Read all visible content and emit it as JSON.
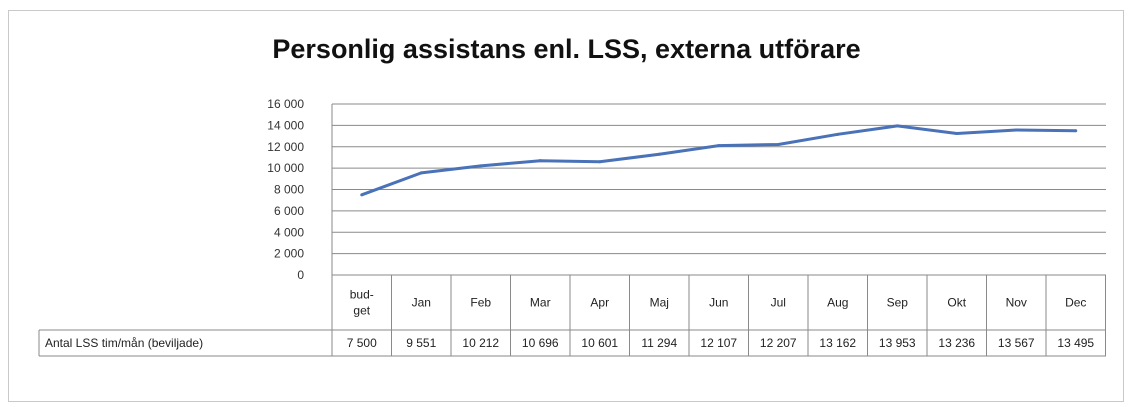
{
  "chart_data": {
    "type": "line",
    "title": "Personlig assistans enl. LSS, externa utförare",
    "categories": [
      "bud-\nget",
      "Jan",
      "Feb",
      "Mar",
      "Apr",
      "Maj",
      "Jun",
      "Jul",
      "Aug",
      "Sep",
      "Okt",
      "Nov",
      "Dec"
    ],
    "series": [
      {
        "name": "Antal LSS tim/mån (beviljade)",
        "values": [
          7500,
          9551,
          10212,
          10696,
          10601,
          11294,
          12107,
          12207,
          13162,
          13953,
          13236,
          13567,
          13495
        ],
        "value_labels": [
          "7 500",
          "9 551",
          "10 212",
          "10 696",
          "10 601",
          "11 294",
          "12 107",
          "12 207",
          "13 162",
          "13 953",
          "13 236",
          "13 567",
          "13 495"
        ],
        "color": "#4a72b8"
      }
    ],
    "ylim": [
      0,
      16000
    ],
    "yticks": [
      0,
      2000,
      4000,
      6000,
      8000,
      10000,
      12000,
      14000,
      16000
    ],
    "ytick_labels": [
      "0",
      "2 000",
      "4 000",
      "6 000",
      "8 000",
      "10 000",
      "12 000",
      "14 000",
      "16 000"
    ],
    "grid": true,
    "legend": "data-table-below"
  }
}
